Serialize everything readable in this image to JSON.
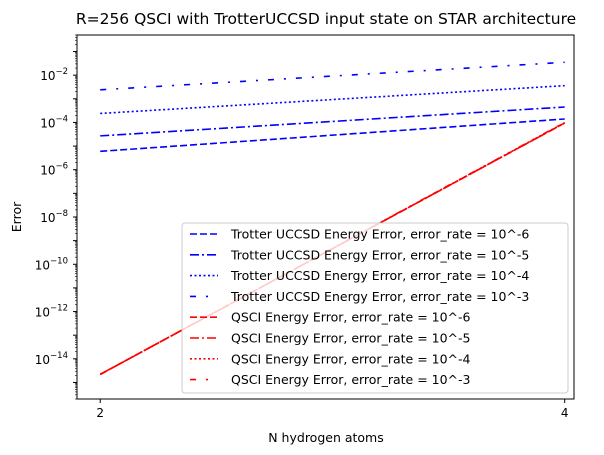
{
  "chart_data": {
    "type": "line",
    "title": "R=256 QSCI with TrotterUCCSD input state on STAR architecture",
    "xlabel": "N hydrogen atoms",
    "ylabel": "Error",
    "x": [
      2,
      4
    ],
    "xticks": [
      "2",
      "4"
    ],
    "xlim": [
      1.9,
      4.04
    ],
    "ylim": [
      2e-16,
      0.5
    ],
    "yscale": "log",
    "ytick_exponents": [
      -14,
      -12,
      -10,
      -8,
      -6,
      -4,
      -2
    ],
    "ytick_base": "10",
    "grid": false,
    "legend_position": "lower-right",
    "series": [
      {
        "name": "Trotter UCCSD Energy Error, error_rate = 10^-6",
        "values": [
          6e-06,
          0.00014
        ],
        "color": "#0000ff",
        "dash": "dashed"
      },
      {
        "name": "Trotter UCCSD Energy Error, error_rate = 10^-5",
        "values": [
          2.7e-05,
          0.00045
        ],
        "color": "#0000ff",
        "dash": "dashdot"
      },
      {
        "name": "Trotter UCCSD Energy Error, error_rate = 10^-4",
        "values": [
          0.00024,
          0.0036
        ],
        "color": "#0000ff",
        "dash": "dotted"
      },
      {
        "name": "Trotter UCCSD Energy Error, error_rate = 10^-3",
        "values": [
          0.0024,
          0.035
        ],
        "color": "#0000ff",
        "dash": "loose-dashdot"
      },
      {
        "name": "QSCI Energy Error, error_rate = 10^-6",
        "values": [
          2.2e-15,
          9.5e-05
        ],
        "color": "#ff0000",
        "dash": "dashed"
      },
      {
        "name": "QSCI Energy Error, error_rate = 10^-5",
        "values": [
          2.2e-15,
          9.5e-05
        ],
        "color": "#ff0000",
        "dash": "dashdot"
      },
      {
        "name": "QSCI Energy Error, error_rate = 10^-4",
        "values": [
          2.2e-15,
          9.8e-05
        ],
        "color": "#ff0000",
        "dash": "dotted"
      },
      {
        "name": "QSCI Energy Error, error_rate = 10^-3",
        "values": [
          2.2e-15,
          0.0001
        ],
        "color": "#ff0000",
        "dash": "loose-dashdot"
      }
    ]
  }
}
